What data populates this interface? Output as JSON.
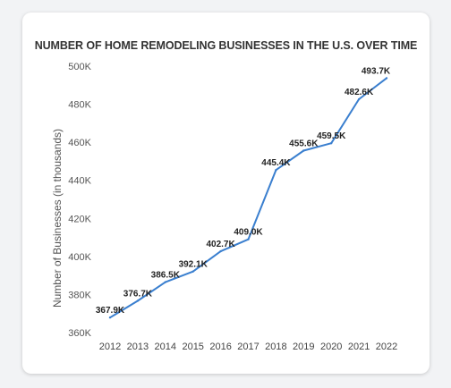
{
  "chart_data": {
    "type": "line",
    "title": "NUMBER OF HOME REMODELING BUSINESSES IN THE U.S. OVER TIME",
    "xlabel": "",
    "ylabel": "Number of Businesses (in thousands)",
    "x": [
      "2012",
      "2013",
      "2014",
      "2015",
      "2016",
      "2017",
      "2018",
      "2019",
      "2020",
      "2021",
      "2022"
    ],
    "series": [
      {
        "values": [
          367.9,
          376.7,
          386.5,
          392.1,
          402.7,
          409.0,
          445.4,
          455.6,
          459.5,
          482.6,
          493.7
        ],
        "labels": [
          "367.9K",
          "376.7K",
          "386.5K",
          "392.1K",
          "402.7K",
          "409.0K",
          "445.4K",
          "455.6K",
          "459.5K",
          "482.6K",
          "493.7K"
        ]
      }
    ],
    "ylim": [
      360,
      500
    ],
    "yticks": [
      360,
      380,
      400,
      420,
      440,
      460,
      480,
      500
    ],
    "ytick_labels": [
      "360K",
      "380K",
      "400K",
      "420K",
      "440K",
      "460K",
      "480K",
      "500K"
    ],
    "grid": false,
    "line_color": "#3a7fcf"
  }
}
